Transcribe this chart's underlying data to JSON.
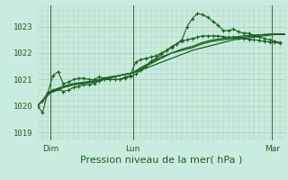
{
  "background_color": "#c8ede0",
  "grid_color": "#b0c8b0",
  "line_color": "#1a6020",
  "xlabel": "Pression niveau de la mer( hPa )",
  "xlabel_fontsize": 8,
  "yticks": [
    1019,
    1020,
    1021,
    1022,
    1023
  ],
  "ylim": [
    1018.7,
    1023.8
  ],
  "xlim": [
    0,
    48
  ],
  "xtick_labels": [
    "Dim",
    "Lun",
    "Mar"
  ],
  "xtick_positions": [
    2.5,
    18.5,
    45.5
  ],
  "vlines": [
    2.5,
    18.5,
    45.5
  ],
  "smooth1_x": [
    0,
    2.5,
    4,
    5,
    6,
    7,
    8,
    9,
    10,
    11,
    12,
    13,
    14,
    15,
    16,
    17,
    18.5,
    20,
    22,
    24,
    26,
    28,
    30,
    32,
    34,
    36,
    38,
    40,
    42,
    44,
    46,
    48
  ],
  "smooth1_y": [
    1020.0,
    1020.5,
    1020.6,
    1020.7,
    1020.75,
    1020.8,
    1020.85,
    1020.85,
    1020.9,
    1020.95,
    1021.0,
    1021.05,
    1021.1,
    1021.12,
    1021.15,
    1021.2,
    1021.25,
    1021.35,
    1021.5,
    1021.65,
    1021.8,
    1021.95,
    1022.1,
    1022.2,
    1022.3,
    1022.4,
    1022.5,
    1022.55,
    1022.6,
    1022.65,
    1022.7,
    1022.7
  ],
  "smooth2_x": [
    0,
    2.5,
    5,
    7,
    9,
    11,
    13,
    15,
    17,
    18.5,
    20,
    22,
    24,
    26,
    28,
    30,
    32,
    34,
    36,
    38,
    40,
    42,
    44,
    46,
    48
  ],
  "smooth2_y": [
    1020.0,
    1020.55,
    1020.75,
    1020.85,
    1020.9,
    1020.95,
    1021.05,
    1021.12,
    1021.2,
    1021.25,
    1021.4,
    1021.6,
    1021.8,
    1022.0,
    1022.1,
    1022.2,
    1022.35,
    1022.45,
    1022.5,
    1022.55,
    1022.6,
    1022.65,
    1022.7,
    1022.72,
    1022.72
  ],
  "smooth3_x": [
    0,
    2.5,
    5,
    7,
    9,
    11,
    13,
    15,
    17,
    18.5,
    20,
    22,
    24,
    26,
    28,
    30,
    32,
    34,
    36,
    38,
    40,
    42,
    44,
    46,
    48
  ],
  "smooth3_y": [
    1020.0,
    1020.5,
    1020.7,
    1020.8,
    1020.85,
    1020.9,
    1021.0,
    1021.1,
    1021.2,
    1021.25,
    1021.45,
    1021.65,
    1021.85,
    1022.0,
    1022.15,
    1022.25,
    1022.4,
    1022.5,
    1022.55,
    1022.6,
    1022.65,
    1022.68,
    1022.7,
    1022.72,
    1022.72
  ],
  "spiky_x": [
    0,
    1,
    2,
    3,
    4,
    5,
    6,
    7,
    8,
    9,
    10,
    11,
    12,
    13,
    14,
    15,
    16,
    17,
    18,
    19,
    20,
    21,
    22,
    23,
    24,
    25,
    26,
    27,
    28,
    29,
    30,
    31,
    32,
    33,
    34,
    35,
    36,
    37,
    38,
    39,
    40,
    41,
    42,
    43,
    44,
    45,
    46,
    47
  ],
  "spiky_y": [
    1020.0,
    1019.75,
    1020.5,
    1021.15,
    1021.3,
    1020.85,
    1020.9,
    1021.0,
    1021.05,
    1021.05,
    1021.0,
    1021.0,
    1021.1,
    1021.05,
    1021.0,
    1021.0,
    1021.0,
    1021.1,
    1021.15,
    1021.65,
    1021.75,
    1021.8,
    1021.85,
    1021.9,
    1022.0,
    1022.1,
    1022.25,
    1022.35,
    1022.5,
    1023.0,
    1023.3,
    1023.5,
    1023.45,
    1023.35,
    1023.2,
    1023.05,
    1022.85,
    1022.85,
    1022.9,
    1022.8,
    1022.75,
    1022.75,
    1022.65,
    1022.6,
    1022.55,
    1022.5,
    1022.45,
    1022.4
  ],
  "spiky2_x": [
    0,
    1,
    2,
    3,
    4,
    5,
    6,
    7,
    8,
    9,
    10,
    11,
    12,
    13,
    14,
    15,
    16,
    17,
    18,
    19,
    20,
    21,
    22,
    23,
    24,
    25,
    26,
    27,
    28,
    29,
    30,
    31,
    32,
    33,
    34,
    35,
    36,
    37,
    38,
    39,
    40,
    41,
    42,
    43,
    44,
    45,
    46,
    47
  ],
  "spiky2_y": [
    1020.0,
    1020.2,
    1020.5,
    1020.6,
    1020.65,
    1020.55,
    1020.6,
    1020.7,
    1020.75,
    1020.8,
    1020.8,
    1020.85,
    1020.95,
    1021.0,
    1021.0,
    1021.0,
    1021.0,
    1021.05,
    1021.1,
    1021.2,
    1021.35,
    1021.5,
    1021.7,
    1021.8,
    1021.95,
    1022.1,
    1022.2,
    1022.35,
    1022.45,
    1022.5,
    1022.55,
    1022.6,
    1022.65,
    1022.65,
    1022.65,
    1022.65,
    1022.62,
    1022.6,
    1022.6,
    1022.58,
    1022.55,
    1022.52,
    1022.5,
    1022.48,
    1022.45,
    1022.42,
    1022.4,
    1022.38
  ]
}
